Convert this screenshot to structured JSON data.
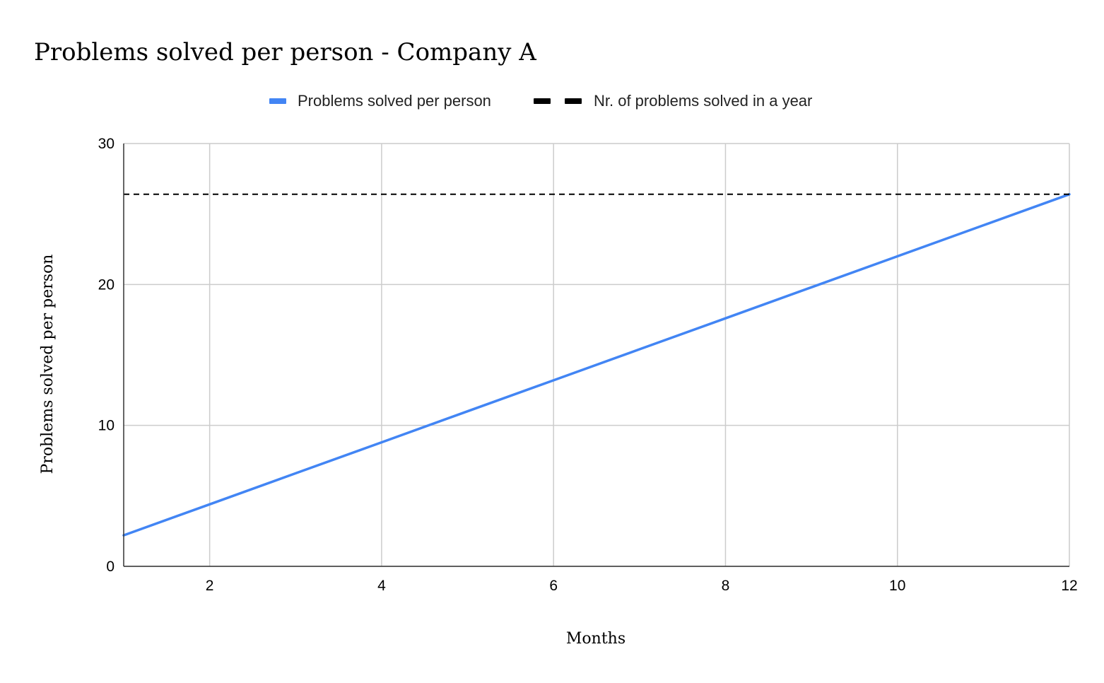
{
  "chart_data": {
    "type": "line",
    "title": "Problems solved per person - Company A",
    "xlabel": "Months",
    "ylabel": "Problems solved per person",
    "xlim": [
      1,
      12
    ],
    "ylim": [
      0,
      30
    ],
    "x_ticks": [
      2,
      4,
      6,
      8,
      10,
      12
    ],
    "y_ticks": [
      0,
      10,
      20,
      30
    ],
    "grid": true,
    "legend_position": "top",
    "series": [
      {
        "name": "Problems solved per person",
        "color": "#4285F4",
        "style": "solid",
        "x": [
          1,
          2,
          3,
          4,
          5,
          6,
          7,
          8,
          9,
          10,
          11,
          12
        ],
        "values": [
          2.2,
          4.4,
          6.6,
          8.8,
          11,
          13.2,
          15.4,
          17.6,
          19.8,
          22,
          24.2,
          26.4
        ]
      },
      {
        "name": "Nr. of problems solved in a year",
        "color": "#000000",
        "style": "dashed",
        "x": [
          1,
          12
        ],
        "values": [
          26.4,
          26.4
        ]
      }
    ]
  }
}
